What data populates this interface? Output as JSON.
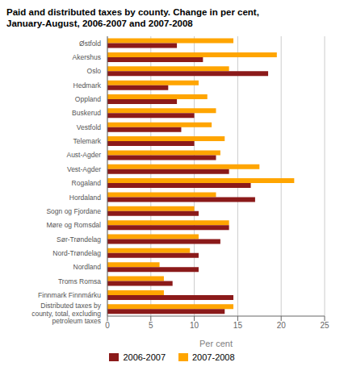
{
  "chart_data": {
    "type": "bar",
    "orientation": "horizontal",
    "title": "Paid and distributed taxes by county. Change in per cent,\nJanuary-August, 2006-2007 and 2007-2008",
    "categories": [
      "Østfold",
      "Akershus",
      "Oslo",
      "Hedmark",
      "Oppland",
      "Buskerud",
      "Vestfold",
      "Telemark",
      "Aust-Agder",
      "Vest-Agder",
      "Rogaland",
      "Hordaland",
      "Sogn og Fjordane",
      "Møre og Romsdal",
      "Sør-Trøndelag",
      "Nord-Trøndelag",
      "Nordland",
      "Troms Romsa",
      "Finnmark Finnmárku",
      "Distributed taxes by\ncounty, total, excluding\npetroleum taxes"
    ],
    "series": [
      {
        "name": "2006-2007",
        "color": "#8B1A1A",
        "values": [
          8.0,
          11.0,
          18.5,
          7.0,
          8.0,
          10.0,
          8.5,
          10.0,
          12.5,
          14.0,
          16.5,
          17.0,
          10.5,
          14.0,
          13.0,
          10.5,
          10.5,
          7.5,
          14.5,
          13.5
        ]
      },
      {
        "name": "2007-2008",
        "color": "#FFA500",
        "values": [
          14.5,
          19.5,
          14.0,
          10.5,
          11.5,
          12.5,
          12.0,
          13.5,
          13.0,
          17.5,
          21.5,
          12.5,
          10.0,
          14.0,
          10.5,
          9.5,
          6.0,
          6.5,
          6.5,
          14.5
        ]
      }
    ],
    "xlabel": "Per cent",
    "xlim": [
      0,
      25
    ],
    "xticks": [
      0,
      5,
      10,
      15,
      20,
      25
    ],
    "grid": true,
    "legend": "bottom"
  }
}
